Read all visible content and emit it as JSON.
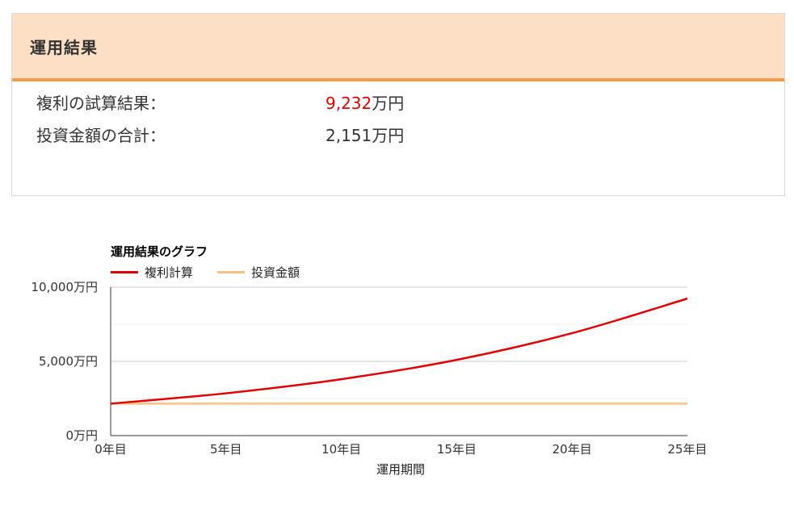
{
  "panel": {
    "title": "運用結果",
    "compound_label": "複利の試算結果：",
    "compound_value": "9,232",
    "compound_unit": "万円",
    "invest_label": "投資金額の合計：",
    "invest_value": "2,151",
    "invest_unit": "万円"
  },
  "colors": {
    "header_bg": "#fddfc5",
    "header_accent": "#f39c42",
    "compound_value": "#e00000"
  },
  "chart_data": {
    "type": "line",
    "title": "運用結果のグラフ",
    "xlabel": "運用期間",
    "ylabel": "",
    "x": [
      0,
      5,
      10,
      15,
      20,
      25
    ],
    "x_tick_labels": [
      "0年目",
      "5年目",
      "10年目",
      "15年目",
      "20年目",
      "25年目"
    ],
    "y_tick_labels": [
      "0万円",
      "5,000万円",
      "10,000万円"
    ],
    "y_ticks": [
      0,
      5000,
      10000
    ],
    "xlim": [
      0,
      25
    ],
    "ylim": [
      0,
      10000
    ],
    "grid": true,
    "legend_position": "top-left",
    "series": [
      {
        "name": "複利計算",
        "color": "#e30000",
        "values": [
          2151,
          2850,
          3800,
          5100,
          6900,
          9232
        ]
      },
      {
        "name": "投資金額",
        "color": "#fbbf80",
        "values": [
          2151,
          2151,
          2151,
          2151,
          2151,
          2151
        ]
      }
    ]
  }
}
